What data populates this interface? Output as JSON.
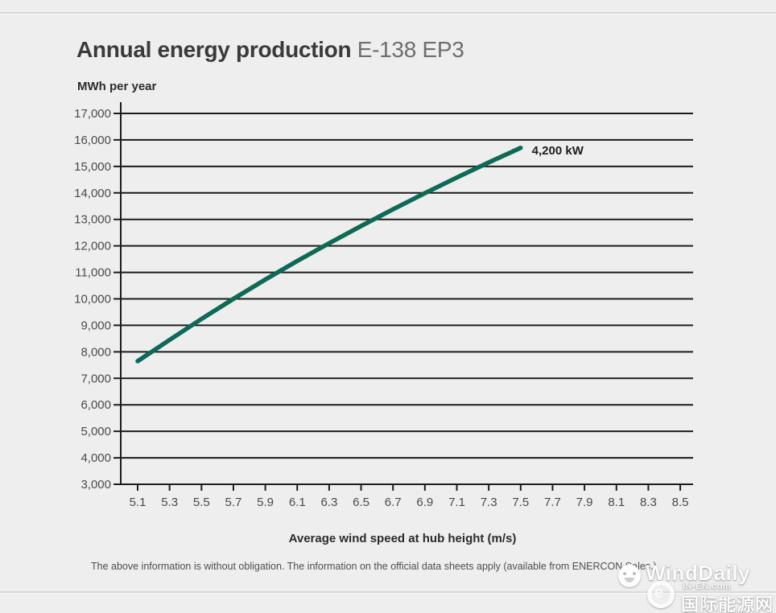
{
  "header": {
    "title_bold": "Annual energy production",
    "title_light": "E-138 EP3"
  },
  "axes": {
    "y_unit_label": "MWh per year",
    "x_axis_title": "Average wind speed at hub height (m/s)"
  },
  "footer": {
    "disclaimer": "The above information is without obligation. The information on the official data sheets apply (available from ENERCON Sales.)"
  },
  "watermark": {
    "name": "WindDaily",
    "face_icon": "smiley-face-icon",
    "logo_letter": "e",
    "site": "IN-EN.com",
    "cn_name": "国际能源网"
  },
  "chart_data": {
    "type": "line",
    "title": "Annual energy production E-138 EP3",
    "xlabel": "Average wind speed at hub height (m/s)",
    "ylabel": "MWh per year",
    "xlim": [
      5.0,
      8.6
    ],
    "ylim": [
      3000,
      17400
    ],
    "grid": "horizontal-on",
    "legend_position": "inline-annotation",
    "x_ticks": [
      5.1,
      5.3,
      5.5,
      5.7,
      5.9,
      6.1,
      6.3,
      6.5,
      6.7,
      6.9,
      7.1,
      7.3,
      7.5,
      7.7,
      7.9,
      8.1,
      8.3,
      8.5
    ],
    "y_ticks": [
      3000,
      4000,
      5000,
      6000,
      7000,
      8000,
      9000,
      10000,
      11000,
      12000,
      13000,
      14000,
      15000,
      16000,
      17000
    ],
    "series": [
      {
        "name": "4,200 kW",
        "x": [
          5.1,
          5.3,
          5.5,
          5.7,
          5.9,
          6.1,
          6.3,
          6.5,
          6.7,
          6.9,
          7.1,
          7.3,
          7.5
        ],
        "y": [
          7650,
          8450,
          9240,
          10000,
          10730,
          11430,
          12100,
          12750,
          13380,
          13990,
          14580,
          15150,
          15700
        ]
      }
    ],
    "annotation": {
      "text": "4,200 kW",
      "x": 7.57,
      "y": 15450
    },
    "line_color": "#0e6a56",
    "grid_color": "#1c1c1c",
    "background_color": "#eeeeee"
  }
}
